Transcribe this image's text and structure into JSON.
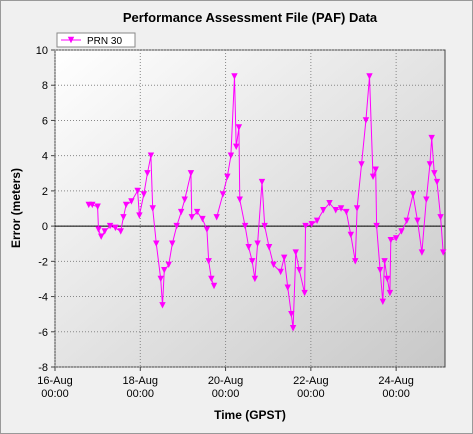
{
  "chart_data": {
    "type": "line",
    "title": "Performance Assessment File (PAF) Data",
    "x_label": "Time (GPST)",
    "y_label": "Error (meters)",
    "x": [
      "16-Aug 19:00",
      "16-Aug 21:00",
      "17-Aug 00:00",
      "17-Aug 00:30",
      "17-Aug 02:00",
      "17-Aug 04:00",
      "17-Aug 07:00",
      "17-Aug 10:00",
      "17-Aug 13:00",
      "17-Aug 14:30",
      "17-Aug 16:00",
      "17-Aug 19:00",
      "17-Aug 22:30",
      "17-Aug 23:30",
      "18-Aug 02:00",
      "18-Aug 04:00",
      "18-Aug 06:00",
      "18-Aug 07:00",
      "18-Aug 09:00",
      "18-Aug 11:30",
      "18-Aug 12:30",
      "18-Aug 13:30",
      "18-Aug 16:00",
      "18-Aug 18:00",
      "18-Aug 20:30",
      "18-Aug 23:00",
      "19-Aug 01:00",
      "19-Aug 04:30",
      "19-Aug 05:00",
      "19-Aug 08:00",
      "19-Aug 11:00",
      "19-Aug 13:30",
      "19-Aug 14:30",
      "19-Aug 16:00",
      "19-Aug 17:30",
      null,
      "19-Aug 19:00",
      "19-Aug 22:30",
      "20-Aug 01:00",
      "20-Aug 03:00",
      "20-Aug 05:00",
      "20-Aug 06:00",
      "20-Aug 07:30",
      "20-Aug 08:00",
      "20-Aug 11:00",
      "20-Aug 13:00",
      "20-Aug 15:00",
      "20-Aug 16:30",
      "20-Aug 18:00",
      "20-Aug 20:30",
      "20-Aug 22:00",
      "21-Aug 00:30",
      "21-Aug 03:00",
      "21-Aug 07:00",
      "21-Aug 09:00",
      "21-Aug 11:00",
      "21-Aug 13:00",
      "21-Aug 14:00",
      "21-Aug 15:30",
      "21-Aug 17:30",
      "21-Aug 20:30",
      "21-Aug 21:00",
      "22-Aug 00:30",
      "22-Aug 03:30",
      "22-Aug 07:00",
      "22-Aug 10:30",
      "22-Aug 14:00",
      "22-Aug 17:00",
      "22-Aug 20:00",
      "22-Aug 22:30",
      "23-Aug 01:00",
      "23-Aug 02:00",
      "23-Aug 04:30",
      "23-Aug 07:00",
      "23-Aug 09:00",
      "23-Aug 11:00",
      "23-Aug 12:30",
      "23-Aug 13:00",
      "23-Aug 15:00",
      "23-Aug 16:30",
      "23-Aug 17:30",
      "23-Aug 19:00",
      "23-Aug 20:30",
      "23-Aug 21:00",
      "24-Aug 00:00",
      "24-Aug 03:00",
      "24-Aug 06:00",
      "24-Aug 09:30",
      "24-Aug 12:00",
      "24-Aug 14:30",
      "24-Aug 17:00",
      "24-Aug 19:00",
      "24-Aug 20:00",
      "24-Aug 21:30",
      "24-Aug 23:00",
      "25-Aug 01:00",
      "25-Aug 02:30"
    ],
    "series": [
      {
        "name": "PRN 30",
        "color": "#ff00ff",
        "values": [
          1.2,
          1.2,
          1.1,
          -0.2,
          -0.6,
          -0.3,
          0.0,
          -0.1,
          -0.3,
          0.5,
          1.2,
          1.4,
          2.0,
          0.6,
          1.8,
          3.0,
          4.0,
          1.0,
          -1.0,
          -3.0,
          -4.5,
          -2.5,
          -2.2,
          -1.0,
          0.0,
          0.8,
          1.5,
          3.0,
          0.5,
          0.8,
          0.4,
          -0.2,
          -2.0,
          -3.0,
          -3.4,
          null,
          0.5,
          1.8,
          2.8,
          4.0,
          8.5,
          4.5,
          5.6,
          1.5,
          0.0,
          -1.2,
          -2.0,
          -3.0,
          -1.0,
          2.5,
          0.0,
          -1.2,
          -2.2,
          -2.6,
          -1.8,
          -3.5,
          -5.0,
          -5.8,
          -1.5,
          -2.5,
          -3.8,
          0.0,
          0.1,
          0.3,
          0.9,
          1.3,
          0.9,
          1.0,
          0.8,
          -0.5,
          -2.0,
          1.0,
          3.5,
          6.0,
          8.5,
          2.8,
          3.2,
          0.0,
          -2.5,
          -4.3,
          -2.0,
          -3.0,
          -3.8,
          -0.8,
          -0.7,
          -0.3,
          0.3,
          1.8,
          0.3,
          -1.5,
          1.5,
          3.5,
          5.0,
          3.0,
          2.5,
          0.5,
          -1.5
        ]
      }
    ],
    "xlim": [
      "16-Aug 00:00",
      "25-Aug 03:30"
    ],
    "xticks": [
      "16-Aug 00:00",
      "18-Aug 00:00",
      "20-Aug 00:00",
      "22-Aug 00:00",
      "24-Aug 00:00"
    ],
    "ylim": [
      -8,
      10
    ],
    "yticks": [
      -8,
      -6,
      -4,
      -2,
      0,
      2,
      4,
      6,
      8,
      10
    ],
    "grid": true,
    "legend": "upper left"
  }
}
